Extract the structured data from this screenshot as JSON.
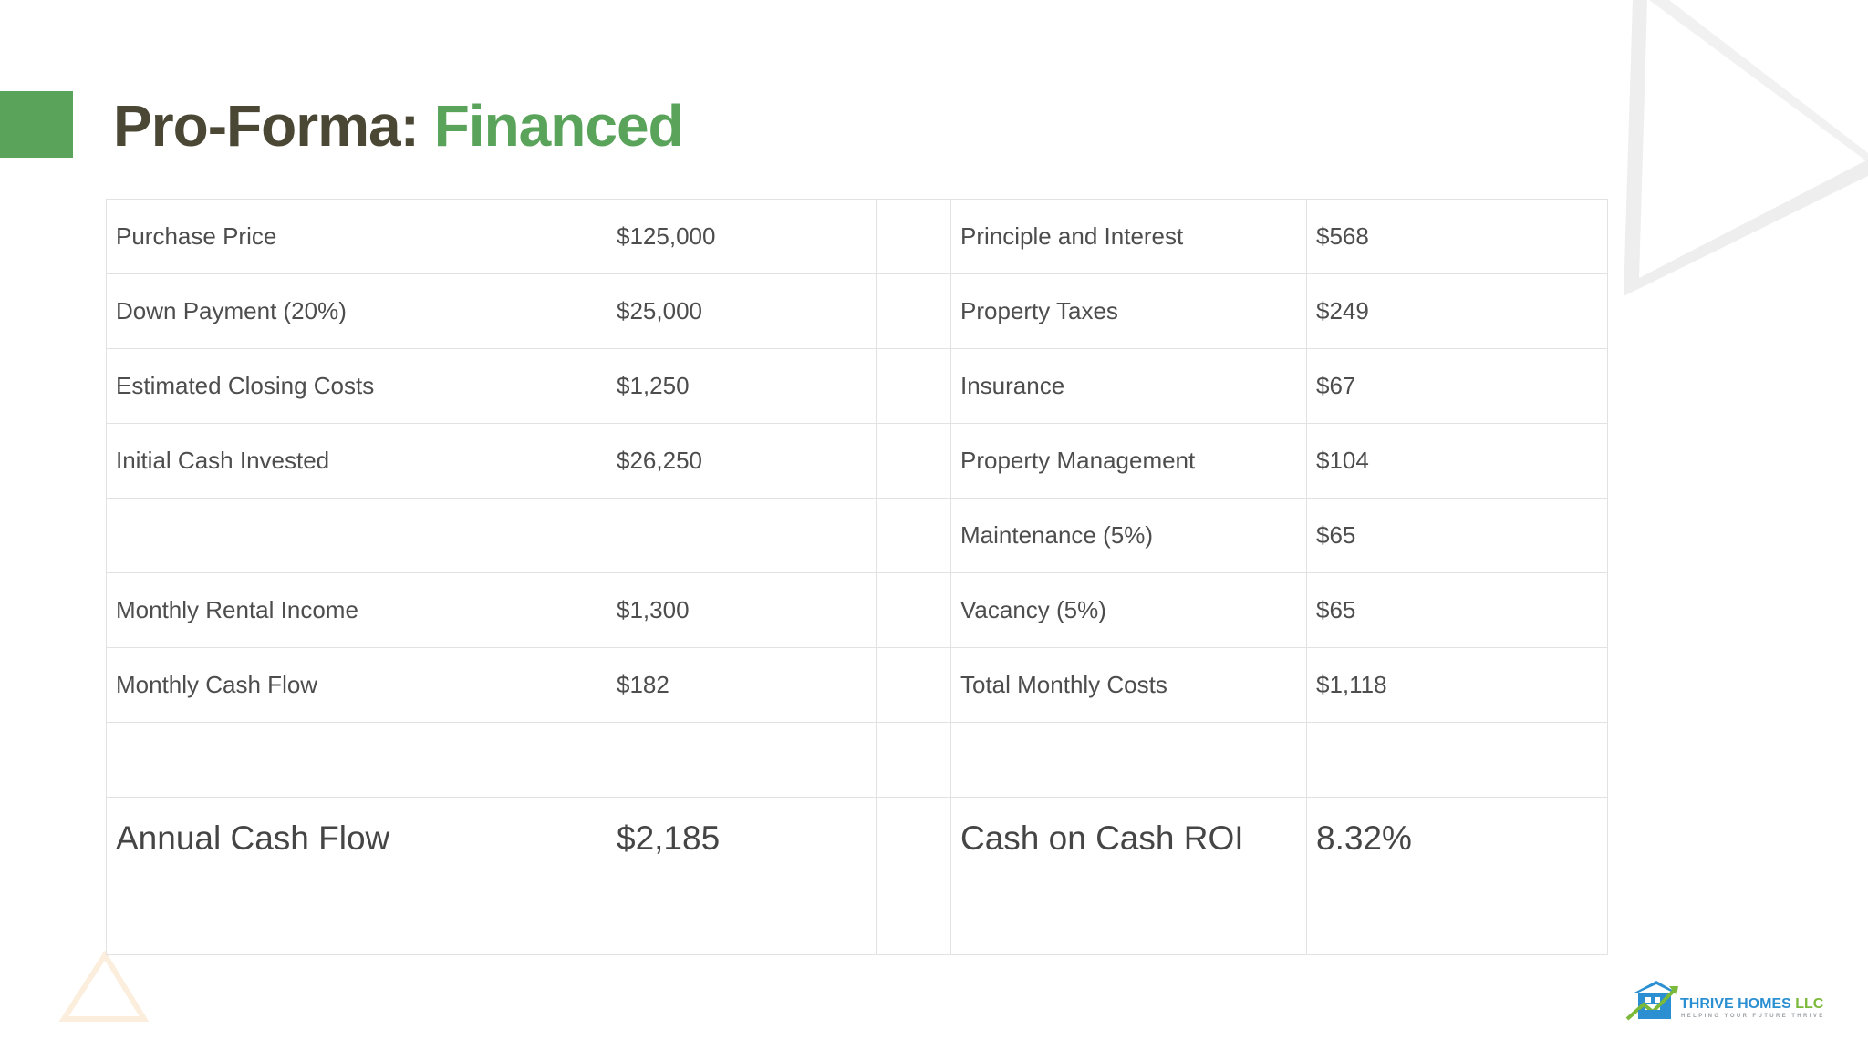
{
  "title": {
    "prefix": "Pro-Forma: ",
    "highlight": "Financed"
  },
  "colors": {
    "accent": "#5aa35a",
    "title_dark": "#4a4735",
    "logo_blue": "#2b8fd1",
    "logo_green": "#7bb93a"
  },
  "table": {
    "rows": [
      {
        "c1": "Purchase Price",
        "c2": "$125,000",
        "c3": "",
        "c4": "Principle and Interest",
        "c5": "$568"
      },
      {
        "c1": "Down Payment (20%)",
        "c2": "$25,000",
        "c3": "",
        "c4": "Property Taxes",
        "c5": "$249"
      },
      {
        "c1": "Estimated Closing Costs",
        "c2": "$1,250",
        "c3": "",
        "c4": "Insurance",
        "c5": "$67"
      },
      {
        "c1": "Initial Cash Invested",
        "c2": "$26,250",
        "c3": "",
        "c4": "Property Management",
        "c5": "$104"
      },
      {
        "c1": "",
        "c2": "",
        "c3": "",
        "c4": "Maintenance (5%)",
        "c5": "$65"
      },
      {
        "c1": "Monthly Rental Income",
        "c2": "$1,300",
        "c3": "",
        "c4": "Vacancy (5%)",
        "c5": "$65"
      },
      {
        "c1": "Monthly Cash Flow",
        "c2": "$182",
        "c3": "",
        "c4": "Total Monthly Costs",
        "c5": "$1,118"
      },
      {
        "c1": "",
        "c2": "",
        "c3": "",
        "c4": "",
        "c5": ""
      },
      {
        "c1": "Annual Cash Flow",
        "c2": "$2,185",
        "c3": "",
        "c4": "Cash on Cash ROI",
        "c5": "8.32%"
      },
      {
        "c1": "",
        "c2": "",
        "c3": "",
        "c4": "",
        "c5": ""
      }
    ]
  },
  "logo": {
    "name_part1": "THRIVE HOMES",
    "name_part2": " LLC",
    "tagline": "HELPING YOUR FUTURE THRIVE"
  },
  "icons": {
    "logo": "house-logo-icon"
  }
}
